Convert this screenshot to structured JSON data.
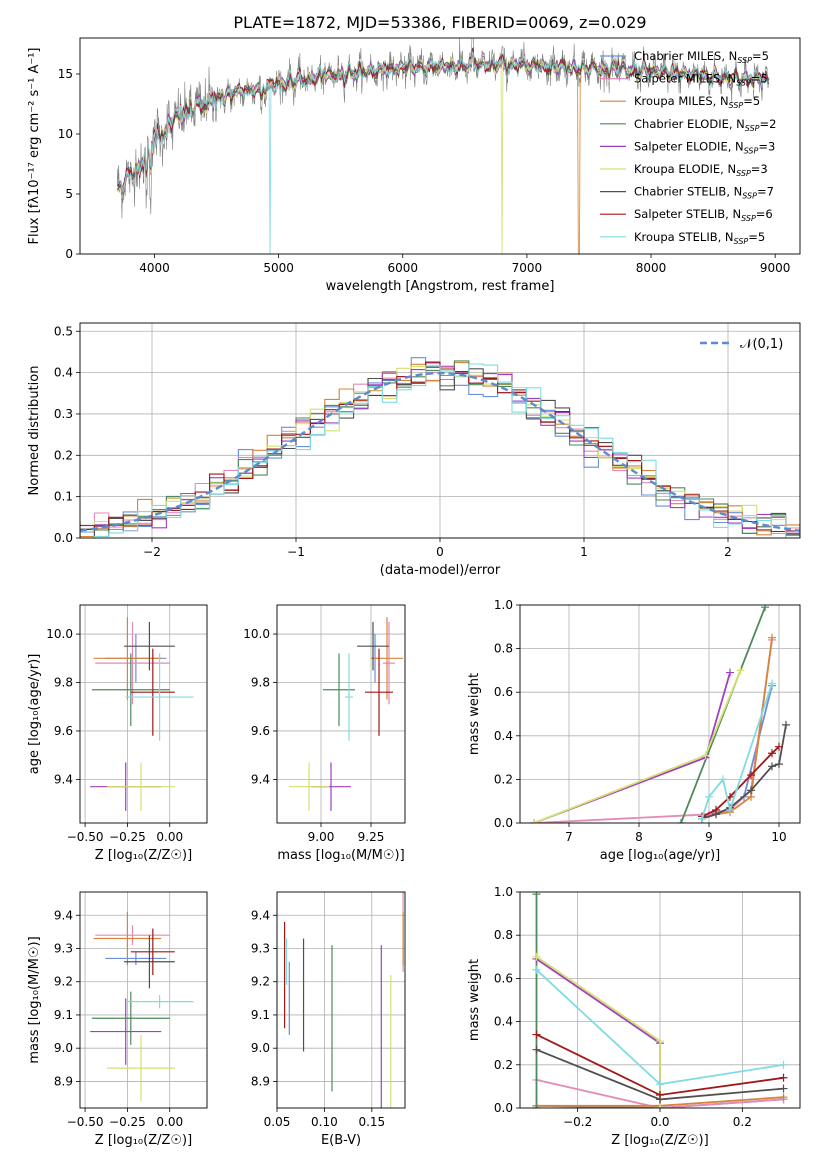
{
  "figure_title": "PLATE=1872, MJD=53386, FIBERID=0069, z=0.029",
  "colors": [
    "#6a8fd8",
    "#e58ab6",
    "#d6843a",
    "#4e8a5a",
    "#a040c0",
    "#d4e070",
    "#505050",
    "#a01818",
    "#80dce0"
  ],
  "legend": [
    {
      "base": "Chabrier MILES, N",
      "sub": "SSP",
      "val": "=5"
    },
    {
      "base": "Salpeter MILES, N",
      "sub": "SSP",
      "val": "=5"
    },
    {
      "base": "Kroupa MILES, N",
      "sub": "SSP",
      "val": "=5"
    },
    {
      "base": "Chabrier ELODIE, N",
      "sub": "SSP",
      "val": "=2"
    },
    {
      "base": "Salpeter ELODIE, N",
      "sub": "SSP",
      "val": "=3"
    },
    {
      "base": "Kroupa ELODIE, N",
      "sub": "SSP",
      "val": "=3"
    },
    {
      "base": "Chabrier STELIB, N",
      "sub": "SSP",
      "val": "=7"
    },
    {
      "base": "Salpeter STELIB, N",
      "sub": "SSP",
      "val": "=6"
    },
    {
      "base": "Kroupa STELIB, N",
      "sub": "SSP",
      "val": "=5"
    }
  ],
  "chart_data": [
    {
      "id": "spectrum",
      "type": "line",
      "xlabel": "wavelength [Angstrom, rest frame]",
      "ylabel": "Flux [fλ10⁻¹⁷ erg cm⁻² s⁻¹ A⁻¹]",
      "xlim": [
        3400,
        9200
      ],
      "ylim": [
        0,
        18
      ],
      "xticks": [
        4000,
        5000,
        6000,
        7000,
        8000,
        9000
      ],
      "yticks": [
        0,
        5,
        10,
        15
      ],
      "data_color": "#808080",
      "grid": false,
      "x_range_data": [
        3700,
        8950
      ],
      "continuum": [
        [
          3700,
          5.5
        ],
        [
          3800,
          6.5
        ],
        [
          3900,
          7.5
        ],
        [
          4000,
          9.5
        ],
        [
          4200,
          11.5
        ],
        [
          4500,
          13
        ],
        [
          5000,
          14.2
        ],
        [
          5500,
          15
        ],
        [
          6000,
          15.5
        ],
        [
          6500,
          15.7
        ],
        [
          7000,
          15.8
        ],
        [
          7500,
          15.5
        ],
        [
          8000,
          15.2
        ],
        [
          8500,
          14.8
        ],
        [
          8950,
          14.5
        ]
      ],
      "model_drops": [
        {
          "series": 2,
          "x": 7420
        },
        {
          "series": 5,
          "x": 6800
        },
        {
          "series": 8,
          "x": 4930
        }
      ]
    },
    {
      "id": "residual_hist",
      "type": "step",
      "xlabel": "(data-model)/error",
      "ylabel": "Normed distribution",
      "xlim": [
        -2.5,
        2.5
      ],
      "ylim": [
        0,
        0.52
      ],
      "xticks": [
        -2,
        -1,
        0,
        1,
        2
      ],
      "yticks": [
        0.0,
        0.1,
        0.2,
        0.3,
        0.4,
        0.5
      ],
      "bin_width": 0.1,
      "grid": true,
      "reference": {
        "label": "𝒩(0,1)",
        "color": "#5b8bd0",
        "style": "dashed"
      }
    },
    {
      "id": "age_vs_Z",
      "type": "errorbar",
      "xlabel": "Z [log₁₀(Z/Z☉)]",
      "ylabel": "age  [log₁₀(age/yr)]",
      "xlim": [
        -0.53,
        0.22
      ],
      "ylim": [
        9.22,
        10.12
      ],
      "xticks": [
        -0.5,
        -0.25,
        0.0
      ],
      "yticks": [
        9.4,
        9.6,
        9.8,
        10.0
      ],
      "grid": true,
      "points": [
        {
          "x": -0.2,
          "xerr": 0.18,
          "y": 9.9,
          "yerr": 0.1
        },
        {
          "x": -0.22,
          "xerr": 0.22,
          "y": 9.88,
          "yerr": 0.17
        },
        {
          "x": -0.25,
          "xerr": 0.2,
          "y": 9.9,
          "yerr": 0.17
        },
        {
          "x": -0.23,
          "xerr": 0.23,
          "y": 9.77,
          "yerr": 0.15
        },
        {
          "x": -0.26,
          "xerr": 0.21,
          "y": 9.37,
          "yerr": 0.1
        },
        {
          "x": -0.17,
          "xerr": 0.2,
          "y": 9.37,
          "yerr": 0.1
        },
        {
          "x": -0.12,
          "xerr": 0.15,
          "y": 9.95,
          "yerr": 0.1
        },
        {
          "x": -0.1,
          "xerr": 0.13,
          "y": 9.76,
          "yerr": 0.18
        },
        {
          "x": -0.06,
          "xerr": 0.2,
          "y": 9.74,
          "yerr": 0.18
        }
      ]
    },
    {
      "id": "age_vs_mass",
      "type": "errorbar",
      "xlabel": "mass [log₁₀(M/M☉)]",
      "ylabel": "",
      "xlim": [
        8.78,
        9.42
      ],
      "ylim": [
        9.22,
        10.12
      ],
      "xticks": [
        9.0,
        9.25
      ],
      "yticks": [
        9.4,
        9.6,
        9.8,
        10.0
      ],
      "grid": true,
      "points": [
        {
          "x": 9.27,
          "xerr": 0.02,
          "y": 9.9,
          "yerr": 0.1
        },
        {
          "x": 9.34,
          "xerr": 0.03,
          "y": 9.88,
          "yerr": 0.17
        },
        {
          "x": 9.33,
          "xerr": 0.08,
          "y": 9.9,
          "yerr": 0.17
        },
        {
          "x": 9.09,
          "xerr": 0.08,
          "y": 9.77,
          "yerr": 0.15
        },
        {
          "x": 9.05,
          "xerr": 0.1,
          "y": 9.37,
          "yerr": 0.1
        },
        {
          "x": 8.94,
          "xerr": 0.1,
          "y": 9.37,
          "yerr": 0.1
        },
        {
          "x": 9.26,
          "xerr": 0.08,
          "y": 9.95,
          "yerr": 0.1
        },
        {
          "x": 9.29,
          "xerr": 0.07,
          "y": 9.76,
          "yerr": 0.18
        },
        {
          "x": 9.14,
          "xerr": 0.02,
          "y": 9.74,
          "yerr": 0.18
        }
      ]
    },
    {
      "id": "mass_weight_vs_age",
      "type": "line",
      "xlabel": "age  [log₁₀(age/yr)]",
      "ylabel": "mass weight",
      "xlim": [
        6.3,
        10.3
      ],
      "ylim": [
        0,
        1.0
      ],
      "xticks": [
        7,
        8,
        9,
        10
      ],
      "yticks": [
        0.0,
        0.2,
        0.4,
        0.6,
        0.8,
        1.0
      ],
      "grid": true,
      "series": [
        {
          "x": [
            8.9,
            9.1,
            9.3,
            9.5,
            9.9
          ],
          "y": [
            0.02,
            0.05,
            0.06,
            0.12,
            0.63
          ]
        },
        {
          "x": [
            6.5,
            9.0,
            9.3,
            9.6,
            9.9
          ],
          "y": [
            0.0,
            0.04,
            0.06,
            0.15,
            0.84
          ]
        },
        {
          "x": [
            8.9,
            9.1,
            9.3,
            9.6,
            9.9
          ],
          "y": [
            0.02,
            0.04,
            0.05,
            0.12,
            0.85
          ]
        },
        {
          "x": [
            8.6,
            9.8
          ],
          "y": [
            0.0,
            0.99
          ]
        },
        {
          "x": [
            6.5,
            8.95,
            9.3
          ],
          "y": [
            0.0,
            0.3,
            0.69
          ]
        },
        {
          "x": [
            6.5,
            8.95,
            9.45
          ],
          "y": [
            0.0,
            0.31,
            0.7
          ]
        },
        {
          "x": [
            8.9,
            9.1,
            9.3,
            9.6,
            9.9,
            10.0,
            10.1
          ],
          "y": [
            0.02,
            0.04,
            0.07,
            0.15,
            0.26,
            0.27,
            0.45
          ]
        },
        {
          "x": [
            8.9,
            9.1,
            9.3,
            9.6,
            9.9,
            10.0
          ],
          "y": [
            0.03,
            0.06,
            0.12,
            0.22,
            0.32,
            0.35
          ]
        },
        {
          "x": [
            8.9,
            9.0,
            9.2,
            9.3,
            9.9
          ],
          "y": [
            0.02,
            0.12,
            0.2,
            0.06,
            0.64
          ]
        }
      ]
    },
    {
      "id": "mass_vs_Z",
      "type": "errorbar",
      "xlabel": "Z [log₁₀(Z/Z☉)]",
      "ylabel": "mass [log₁₀(M/M☉)]",
      "xlim": [
        -0.53,
        0.22
      ],
      "ylim": [
        8.82,
        9.47
      ],
      "xticks": [
        -0.5,
        -0.25,
        0.0
      ],
      "yticks": [
        8.9,
        9.0,
        9.1,
        9.2,
        9.3,
        9.4
      ],
      "grid": true,
      "points": [
        {
          "x": -0.2,
          "xerr": 0.18,
          "y": 9.27,
          "yerr": 0.02
        },
        {
          "x": -0.22,
          "xerr": 0.22,
          "y": 9.34,
          "yerr": 0.03
        },
        {
          "x": -0.25,
          "xerr": 0.2,
          "y": 9.33,
          "yerr": 0.08
        },
        {
          "x": -0.23,
          "xerr": 0.23,
          "y": 9.09,
          "yerr": 0.08
        },
        {
          "x": -0.26,
          "xerr": 0.21,
          "y": 9.05,
          "yerr": 0.1
        },
        {
          "x": -0.17,
          "xerr": 0.2,
          "y": 8.94,
          "yerr": 0.1
        },
        {
          "x": -0.12,
          "xerr": 0.15,
          "y": 9.26,
          "yerr": 0.08
        },
        {
          "x": -0.1,
          "xerr": 0.13,
          "y": 9.29,
          "yerr": 0.07
        },
        {
          "x": -0.06,
          "xerr": 0.2,
          "y": 9.14,
          "yerr": 0.02
        }
      ]
    },
    {
      "id": "mass_vs_EBV",
      "type": "errorbar",
      "xlabel": "E(B-V)",
      "ylabel": "",
      "xlim": [
        0.05,
        0.185
      ],
      "ylim": [
        8.82,
        9.47
      ],
      "xticks": [
        0.05,
        0.1,
        0.15
      ],
      "yticks": [
        8.9,
        9.0,
        9.1,
        9.2,
        9.3,
        9.4
      ],
      "grid": true,
      "points": [
        {
          "x": 0.063,
          "y": 9.15,
          "yerr": 0.11
        },
        {
          "x": 0.183,
          "y": 9.37,
          "yerr": 0.14
        },
        {
          "x": 0.183,
          "y": 9.33,
          "yerr": 0.08
        },
        {
          "x": 0.108,
          "y": 9.09,
          "yerr": 0.22
        },
        {
          "x": 0.16,
          "y": 9.05,
          "yerr": 0.26
        },
        {
          "x": 0.17,
          "y": 8.99,
          "yerr": 0.23
        },
        {
          "x": 0.078,
          "y": 9.16,
          "yerr": 0.17
        },
        {
          "x": 0.058,
          "y": 9.22,
          "yerr": 0.16
        },
        {
          "x": 0.06,
          "y": 9.26,
          "yerr": 0.07
        }
      ]
    },
    {
      "id": "mass_weight_vs_Z",
      "type": "line",
      "xlabel": "Z [log₁₀(Z/Z☉)]",
      "ylabel": "mass weight",
      "xlim": [
        -0.34,
        0.34
      ],
      "ylim": [
        0,
        1.0
      ],
      "xticks": [
        -0.2,
        0.0,
        0.2
      ],
      "yticks": [
        0.0,
        0.2,
        0.4,
        0.6,
        0.8,
        1.0
      ],
      "grid": true,
      "series": [
        {
          "x": [
            -0.3,
            0.0,
            0.3
          ],
          "y": [
            0.01,
            0.0,
            0.04
          ]
        },
        {
          "x": [
            -0.3,
            0.0,
            0.3
          ],
          "y": [
            0.13,
            0.0,
            0.04
          ]
        },
        {
          "x": [
            -0.3,
            0.0,
            0.3
          ],
          "y": [
            0.01,
            0.01,
            0.05
          ]
        },
        {
          "x": [
            -0.3,
            -0.3
          ],
          "y": [
            0.0,
            0.99
          ]
        },
        {
          "x": [
            -0.3,
            0.0,
            0.0
          ],
          "y": [
            0.69,
            0.3,
            0.0
          ]
        },
        {
          "x": [
            -0.3,
            0.0,
            0.0
          ],
          "y": [
            0.7,
            0.31,
            0.0
          ]
        },
        {
          "x": [
            -0.3,
            0.0,
            0.3
          ],
          "y": [
            0.27,
            0.04,
            0.09
          ]
        },
        {
          "x": [
            -0.3,
            0.0,
            0.3
          ],
          "y": [
            0.34,
            0.06,
            0.14
          ]
        },
        {
          "x": [
            -0.3,
            0.0,
            0.3
          ],
          "y": [
            0.64,
            0.11,
            0.2
          ]
        }
      ]
    }
  ]
}
